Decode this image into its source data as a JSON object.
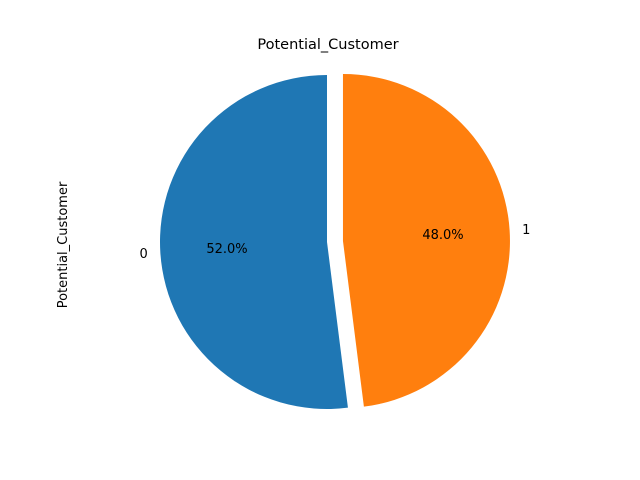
{
  "chart_data": {
    "type": "pie",
    "title": "Potential_Customer",
    "ylabel": "Potential_Customer",
    "slices": [
      {
        "label": "0",
        "value": 52.0,
        "pct_label": "52.0%",
        "color": "#1f77b4",
        "explode": false
      },
      {
        "label": "1",
        "value": 48.0,
        "pct_label": "48.0%",
        "color": "#ff7f0e",
        "explode": true
      }
    ],
    "start_angle_deg": 90,
    "direction": "counterclockwise"
  }
}
